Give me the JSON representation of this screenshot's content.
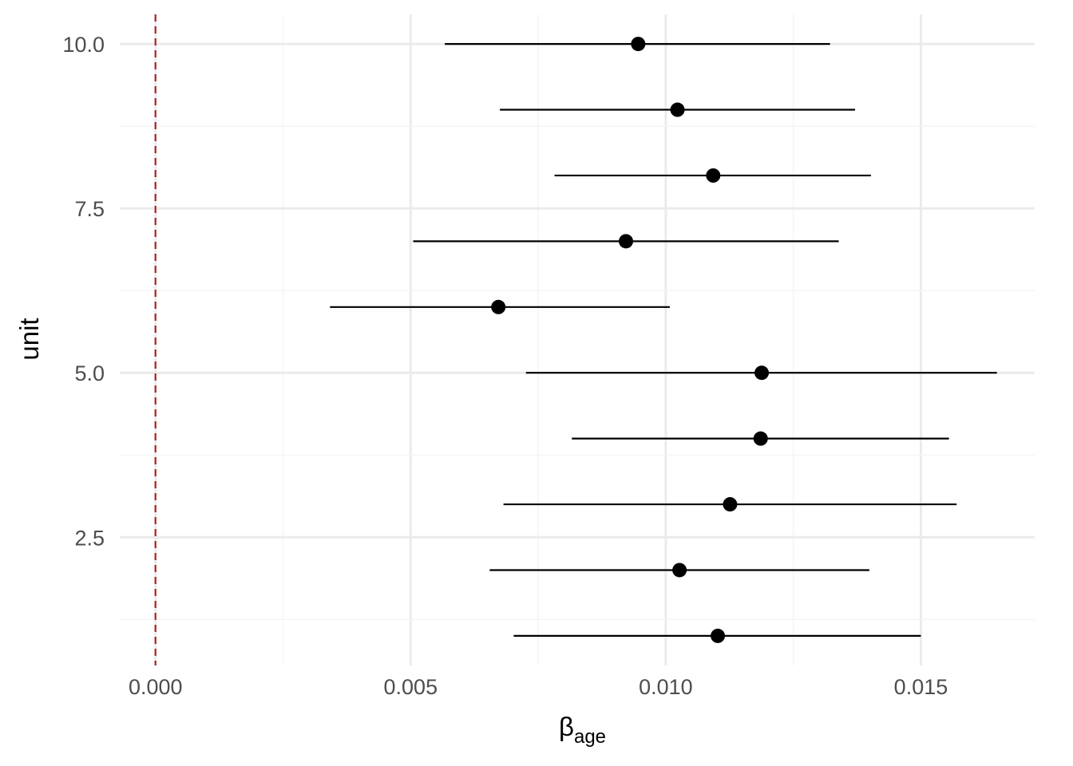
{
  "chart_data": {
    "type": "scatter",
    "subtype": "forest-plot (point estimates with interval bars)",
    "xlabel": "β",
    "xlabel_subscript": "age",
    "ylabel": "unit",
    "xlim": [
      -0.0007,
      0.01723
    ],
    "ylim": [
      0.55,
      10.45
    ],
    "x_ticks": [
      0.0,
      0.005,
      0.01,
      0.015
    ],
    "x_tick_labels": [
      "0.000",
      "0.005",
      "0.010",
      "0.015"
    ],
    "y_ticks": [
      2.5,
      5.0,
      7.5,
      10.0
    ],
    "y_tick_labels": [
      "2.5",
      "5.0",
      "7.5",
      "10.0"
    ],
    "grid": true,
    "reference_line": {
      "x": 0.0,
      "style": "dashed",
      "color": "#b22222"
    },
    "points": [
      {
        "unit": 1,
        "estimate": 0.01102,
        "lower": 0.00702,
        "upper": 0.015
      },
      {
        "unit": 2,
        "estimate": 0.01027,
        "lower": 0.00655,
        "upper": 0.01399
      },
      {
        "unit": 3,
        "estimate": 0.01126,
        "lower": 0.00682,
        "upper": 0.0157
      },
      {
        "unit": 4,
        "estimate": 0.01186,
        "lower": 0.00816,
        "upper": 0.01555
      },
      {
        "unit": 5,
        "estimate": 0.01188,
        "lower": 0.00726,
        "upper": 0.01649
      },
      {
        "unit": 6,
        "estimate": 0.00672,
        "lower": 0.00342,
        "upper": 0.01008
      },
      {
        "unit": 7,
        "estimate": 0.00922,
        "lower": 0.00505,
        "upper": 0.01339
      },
      {
        "unit": 8,
        "estimate": 0.01093,
        "lower": 0.00782,
        "upper": 0.01402
      },
      {
        "unit": 9,
        "estimate": 0.01023,
        "lower": 0.00675,
        "upper": 0.01371
      },
      {
        "unit": 10,
        "estimate": 0.00946,
        "lower": 0.00567,
        "upper": 0.01322
      }
    ],
    "colors": {
      "point": "#000000",
      "interval": "#000000",
      "grid": "#ebebeb",
      "reference_line": "#b22222"
    }
  }
}
